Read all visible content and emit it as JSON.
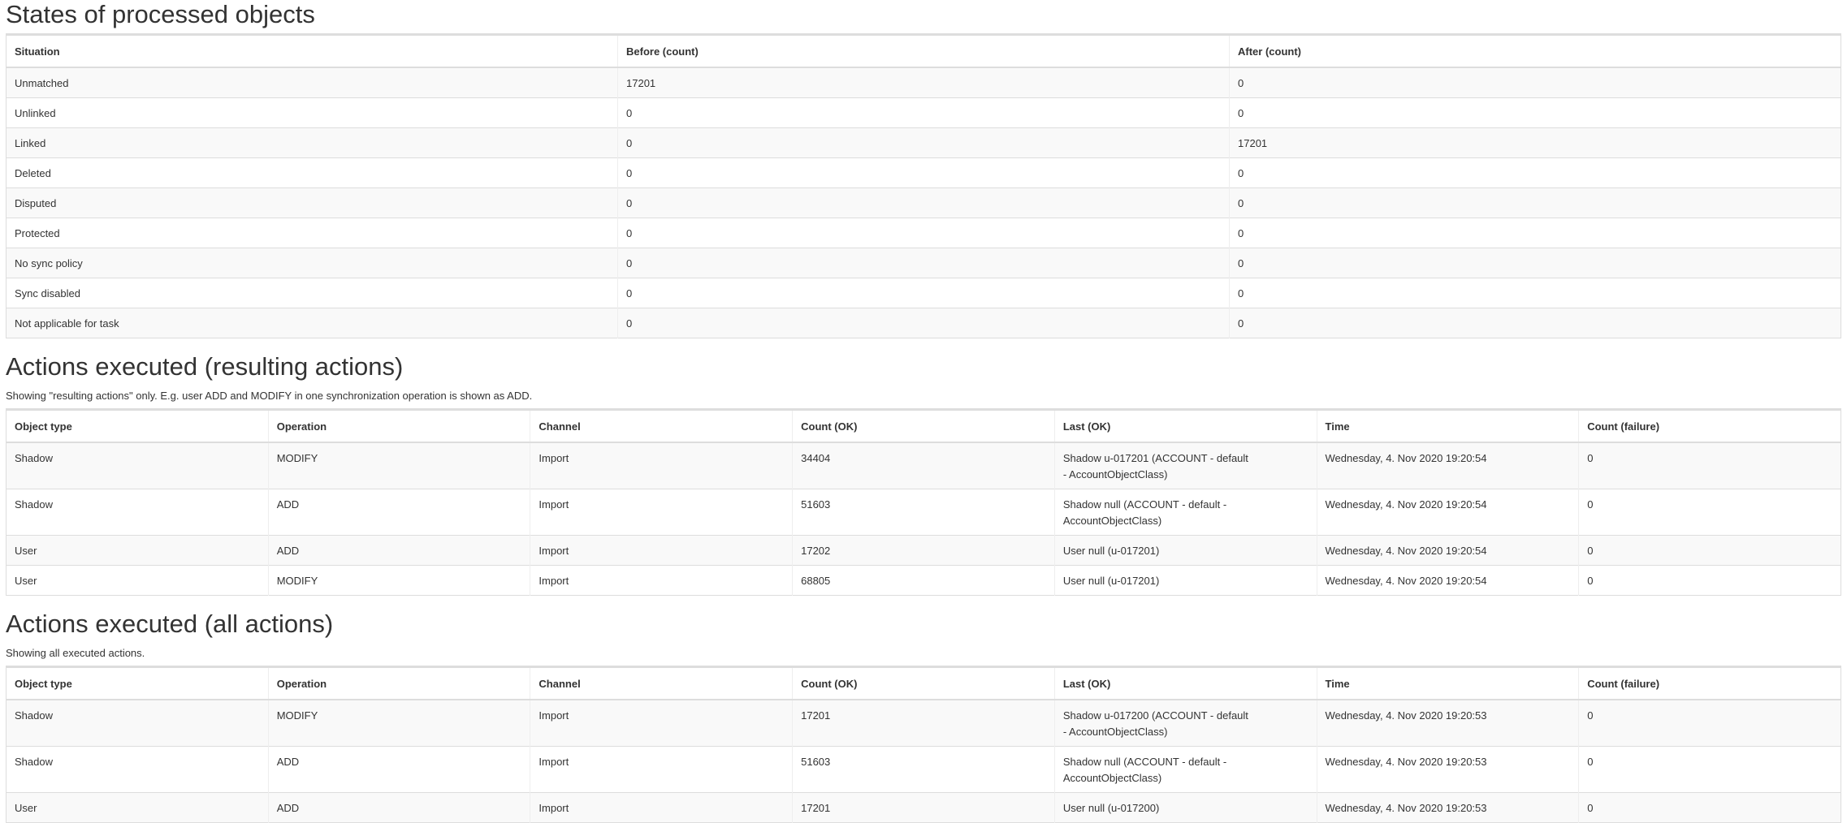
{
  "sections": [
    {
      "title": "States of processed objects",
      "columns": [
        "Situation",
        "Before (count)",
        "After (count)"
      ],
      "rows": [
        [
          "Unmatched",
          17201,
          0
        ],
        [
          "Unlinked",
          0,
          0
        ],
        [
          "Linked",
          0,
          17201
        ],
        [
          "Deleted",
          0,
          0
        ],
        [
          "Disputed",
          0,
          0
        ],
        [
          "Protected",
          0,
          0
        ],
        [
          "No sync policy",
          0,
          0
        ],
        [
          "Sync disabled",
          0,
          0
        ],
        [
          "Not applicable for task",
          0,
          0
        ]
      ]
    },
    {
      "title": "Actions executed (resulting actions)",
      "note": "Showing \"resulting actions\" only. E.g. user ADD and MODIFY in one synchronization operation is shown as ADD.",
      "columns": [
        "Object type",
        "Operation",
        "Channel",
        "Count (OK)",
        "Last (OK)",
        "Time",
        "Count (failure)"
      ],
      "rows": [
        [
          "Shadow",
          "MODIFY",
          "Import",
          34404,
          "Shadow u-017201 (ACCOUNT - default - AccountObjectClass)",
          "Wednesday, 4. Nov 2020 19:20:54",
          0
        ],
        [
          "Shadow",
          "ADD",
          "Import",
          51603,
          "Shadow null (ACCOUNT - default - AccountObjectClass)",
          "Wednesday, 4. Nov 2020 19:20:54",
          0
        ],
        [
          "User",
          "ADD",
          "Import",
          17202,
          "User null (u-017201)",
          "Wednesday, 4. Nov 2020 19:20:54",
          0
        ],
        [
          "User",
          "MODIFY",
          "Import",
          68805,
          "User null (u-017201)",
          "Wednesday, 4. Nov 2020 19:20:54",
          0
        ]
      ]
    },
    {
      "title": "Actions executed (all actions)",
      "note": "Showing all executed actions.",
      "columns": [
        "Object type",
        "Operation",
        "Channel",
        "Count (OK)",
        "Last (OK)",
        "Time",
        "Count (failure)"
      ],
      "rows": [
        [
          "Shadow",
          "MODIFY",
          "Import",
          17201,
          "Shadow u-017200 (ACCOUNT - default - AccountObjectClass)",
          "Wednesday, 4. Nov 2020 19:20:53",
          0
        ],
        [
          "Shadow",
          "ADD",
          "Import",
          51603,
          "Shadow null (ACCOUNT - default - AccountObjectClass)",
          "Wednesday, 4. Nov 2020 19:20:53",
          0
        ],
        [
          "User",
          "ADD",
          "Import",
          17201,
          "User null (u-017200)",
          "Wednesday, 4. Nov 2020 19:20:53",
          0
        ]
      ]
    }
  ]
}
